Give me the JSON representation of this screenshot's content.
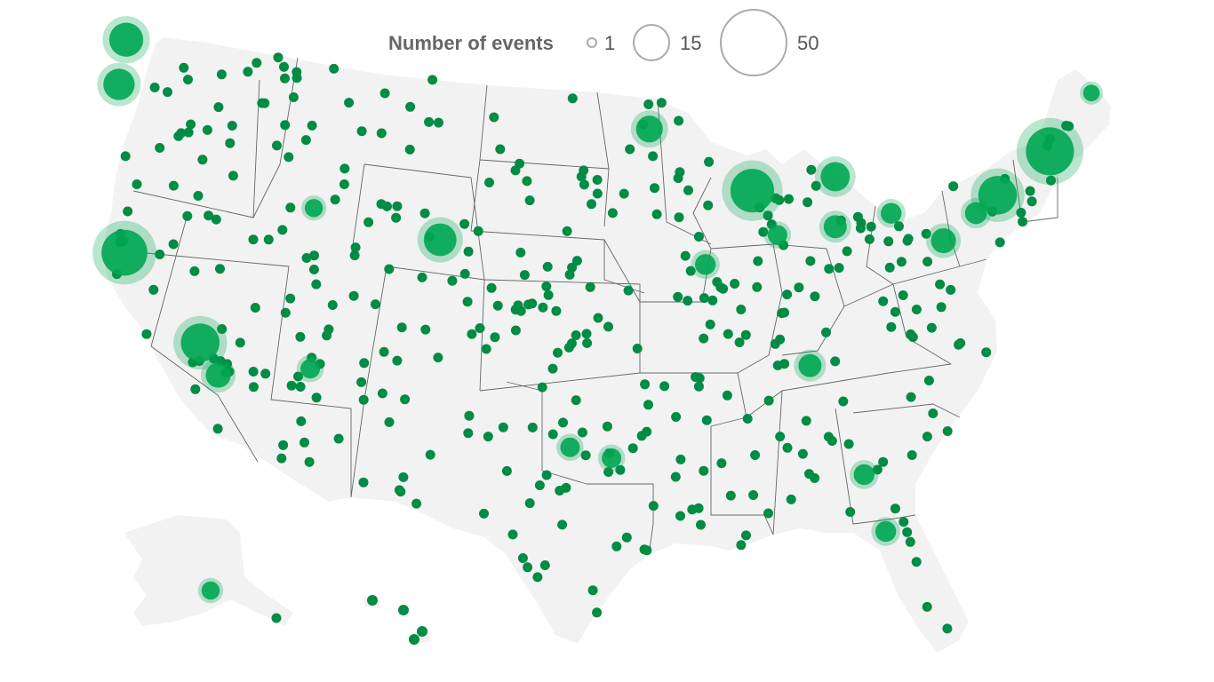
{
  "legend": {
    "title": "Number of events",
    "items": [
      {
        "label": "1",
        "events": 1
      },
      {
        "label": "15",
        "events": 15
      },
      {
        "label": "50",
        "events": 50
      }
    ]
  },
  "colors": {
    "marker_fill": "#00a651",
    "marker_dark": "#008c44",
    "marker_halo": "#00a651",
    "land": "#f2f2f2",
    "state_border": "#666666",
    "legend_ring": "#aaaaaa"
  },
  "map_data": {
    "type": "bubble-map",
    "region": "United States",
    "size_encodes": "Number of events",
    "markers": [
      {
        "lon": -122.3,
        "lat": 47.6,
        "events": 22
      },
      {
        "lon": -122.7,
        "lat": 45.5,
        "events": 18
      },
      {
        "lon": -122.4,
        "lat": 37.8,
        "events": 45
      },
      {
        "lon": -118.2,
        "lat": 34.1,
        "events": 30
      },
      {
        "lon": -117.2,
        "lat": 32.7,
        "events": 10
      },
      {
        "lon": -104.9,
        "lat": 39.7,
        "events": 20
      },
      {
        "lon": -87.6,
        "lat": 41.9,
        "events": 40
      },
      {
        "lon": -71.1,
        "lat": 42.4,
        "events": 50
      },
      {
        "lon": -74.0,
        "lat": 40.7,
        "events": 30
      },
      {
        "lon": -83.0,
        "lat": 42.3,
        "events": 15
      },
      {
        "lon": -93.3,
        "lat": 44.9,
        "events": 12
      },
      {
        "lon": -77.0,
        "lat": 38.9,
        "events": 10
      },
      {
        "lon": -84.4,
        "lat": 33.7,
        "events": 8
      },
      {
        "lon": -80.2,
        "lat": 25.8,
        "events": 6
      },
      {
        "lon": -81.4,
        "lat": 28.5,
        "events": 6
      },
      {
        "lon": -97.7,
        "lat": 30.3,
        "events": 5
      },
      {
        "lon": -95.4,
        "lat": 29.8,
        "events": 5
      },
      {
        "lon": -90.2,
        "lat": 38.6,
        "events": 6
      },
      {
        "lon": -83.0,
        "lat": 40.0,
        "events": 8
      },
      {
        "lon": -86.2,
        "lat": 39.8,
        "events": 5
      },
      {
        "lon": -75.2,
        "lat": 40.0,
        "events": 7
      },
      {
        "lon": -79.9,
        "lat": 40.4,
        "events": 6
      },
      {
        "lon": -112.1,
        "lat": 33.4,
        "events": 5
      },
      {
        "lon": -111.9,
        "lat": 40.8,
        "events": 4
      },
      {
        "lon": -149.9,
        "lat": 61.2,
        "events": 4
      },
      {
        "lon": -68.8,
        "lat": 44.8,
        "events": 3
      }
    ]
  }
}
